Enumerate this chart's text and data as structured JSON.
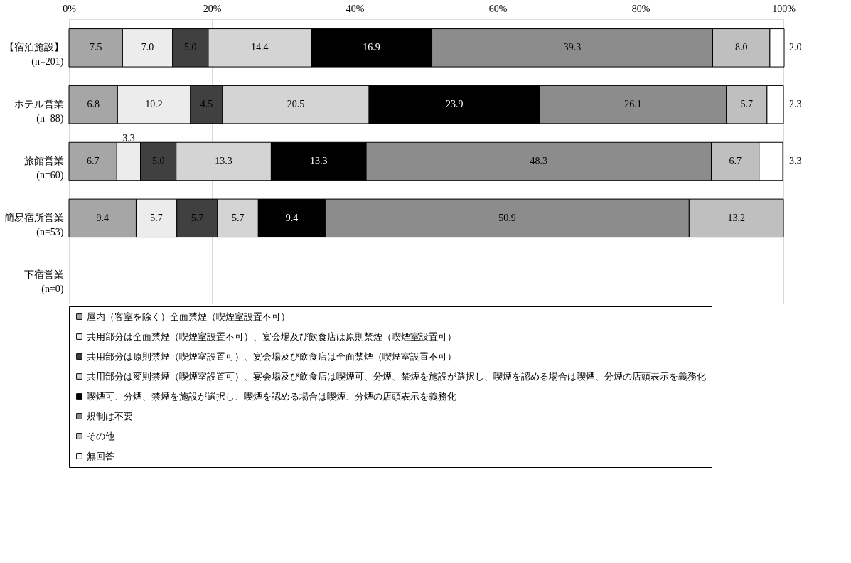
{
  "chart_data": {
    "type": "bar",
    "orientation": "horizontal",
    "stacked": true,
    "categories": [
      "【宿泊施設】\n(n=201)",
      "ホテル営業\n(n=88)",
      "旅館営業\n(n=60)",
      "簡易宿所営業\n(n=53)",
      "下宿営業\n(n=0)"
    ],
    "series": [
      {
        "name": "屋内（客室を除く）全面禁煙（喫煙室設置不可）",
        "color": "#a6a6a6",
        "values": [
          7.5,
          6.8,
          6.7,
          9.4,
          null
        ],
        "value_labels": [
          "7.5",
          "6.8",
          "6.7",
          "9.4",
          null
        ]
      },
      {
        "name": "共用部分は全面禁煙（喫煙室設置不可）、宴会場及び飲食店は原則禁煙（喫煙室設置可）",
        "color": "#ececec",
        "values": [
          7.0,
          10.2,
          3.3,
          5.7,
          null
        ],
        "value_labels": [
          "7.0",
          "10.2",
          "3.3",
          "5.7",
          null
        ]
      },
      {
        "name": "共用部分は原則禁煙（喫煙室設置可）、宴会場及び飲食店は全面禁煙（喫煙室設置不可）",
        "color": "#404040",
        "values": [
          5.0,
          4.5,
          5.0,
          5.7,
          null
        ],
        "value_labels": [
          "5.0",
          "4.5",
          "5.0",
          "5.7",
          null
        ]
      },
      {
        "name": "共用部分は変則禁煙（喫煙室設置可）、宴会場及び飲食店は喫煙可、分煙、禁煙を施設が選択し、喫煙を認める場合は喫煙、分煙の店頭表示を義務化",
        "color": "#d4d4d4",
        "values": [
          14.4,
          20.5,
          13.3,
          5.7,
          null
        ],
        "value_labels": [
          "14.4",
          "20.5",
          "13.3",
          "5.7",
          null
        ]
      },
      {
        "name": "喫煙可、分煙、禁煙を施設が選択し、喫煙を認める場合は喫煙、分煙の店頭表示を義務化",
        "color": "#000000",
        "values": [
          16.9,
          23.9,
          13.3,
          9.4,
          null
        ],
        "value_labels": [
          "16.9",
          "23.9",
          "13.3",
          "9.4",
          null
        ]
      },
      {
        "name": "規制は不要",
        "color": "#8c8c8c",
        "values": [
          39.3,
          26.1,
          48.3,
          50.9,
          null
        ],
        "value_labels": [
          "39.3",
          "26.1",
          "48.3",
          "50.9",
          null
        ]
      },
      {
        "name": "その他",
        "color": "#bfbfbf",
        "values": [
          8.0,
          5.7,
          6.7,
          13.2,
          null
        ],
        "value_labels": [
          "8.0",
          "5.7",
          "6.7",
          "13.2",
          null
        ]
      },
      {
        "name": "無回答",
        "color": "#ffffff",
        "values": [
          2.0,
          2.3,
          3.3,
          null,
          null
        ],
        "value_labels": [
          "2.0",
          "2.3",
          "3.3",
          null,
          null
        ]
      }
    ],
    "xlim": [
      0,
      100
    ],
    "xticks": [
      {
        "value": 0,
        "label": "0%"
      },
      {
        "value": 20,
        "label": "20%"
      },
      {
        "value": 40,
        "label": "40%"
      },
      {
        "value": 60,
        "label": "60%"
      },
      {
        "value": 80,
        "label": "80%"
      },
      {
        "value": 100,
        "label": "100%"
      }
    ],
    "grid": "x",
    "legend": "bottom"
  }
}
